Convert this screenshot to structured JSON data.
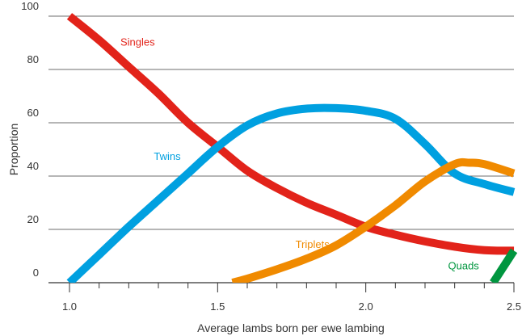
{
  "chart_data": {
    "type": "line",
    "title_fragment": "...",
    "xlabel": "Average lambs born per ewe lambing",
    "ylabel": "Proportion",
    "xlim": [
      1.0,
      2.5
    ],
    "ylim": [
      0,
      100
    ],
    "x_ticks": [
      1.0,
      1.5,
      2.0,
      2.5
    ],
    "x_tick_labels": [
      "1.0",
      "1.5",
      "2.0",
      "2.5"
    ],
    "x_minor_step": 0.1,
    "y_ticks": [
      0,
      20,
      40,
      60,
      80,
      100
    ],
    "y_tick_labels": [
      "0",
      "20",
      "40",
      "60",
      "80",
      "100"
    ],
    "grid": "horizontal",
    "series": [
      {
        "name": "Singles",
        "color": "#e2231a",
        "points": [
          [
            1.0,
            100
          ],
          [
            1.1,
            91
          ],
          [
            1.2,
            81
          ],
          [
            1.3,
            71
          ],
          [
            1.4,
            60
          ],
          [
            1.5,
            51
          ],
          [
            1.6,
            42
          ],
          [
            1.7,
            35.5
          ],
          [
            1.8,
            30
          ],
          [
            1.9,
            25.5
          ],
          [
            2.0,
            21
          ],
          [
            2.1,
            18
          ],
          [
            2.2,
            15.5
          ],
          [
            2.3,
            13.5
          ],
          [
            2.4,
            12.2
          ],
          [
            2.5,
            12
          ]
        ]
      },
      {
        "name": "Twins",
        "color": "#00a0e0",
        "points": [
          [
            1.0,
            0
          ],
          [
            1.1,
            10.5
          ],
          [
            1.2,
            21
          ],
          [
            1.3,
            31
          ],
          [
            1.4,
            41
          ],
          [
            1.5,
            51
          ],
          [
            1.6,
            59
          ],
          [
            1.7,
            63.5
          ],
          [
            1.8,
            65.3
          ],
          [
            1.9,
            65.5
          ],
          [
            2.0,
            64.5
          ],
          [
            2.1,
            61.5
          ],
          [
            2.2,
            52
          ],
          [
            2.3,
            41
          ],
          [
            2.4,
            37
          ],
          [
            2.5,
            34
          ]
        ]
      },
      {
        "name": "Triplets",
        "color": "#f08a00",
        "points": [
          [
            1.55,
            0
          ],
          [
            1.6,
            1.5
          ],
          [
            1.7,
            5
          ],
          [
            1.8,
            9
          ],
          [
            1.9,
            14
          ],
          [
            2.0,
            21
          ],
          [
            2.1,
            29
          ],
          [
            2.2,
            38
          ],
          [
            2.3,
            44.5
          ],
          [
            2.35,
            45
          ],
          [
            2.4,
            44.5
          ],
          [
            2.5,
            41
          ]
        ]
      },
      {
        "name": "Quads",
        "color": "#00963f",
        "points": [
          [
            2.43,
            0
          ],
          [
            2.5,
            12
          ]
        ]
      }
    ],
    "annotations": [
      {
        "text": "Singles",
        "series": "Singles",
        "x": 1.23,
        "y": 89
      },
      {
        "text": "Twins",
        "series": "Twins",
        "x": 1.33,
        "y": 46
      },
      {
        "text": "Triplets",
        "series": "Triplets",
        "x": 1.82,
        "y": 13
      },
      {
        "text": "Quads",
        "series": "Quads",
        "x": 2.33,
        "y": 5
      }
    ]
  }
}
